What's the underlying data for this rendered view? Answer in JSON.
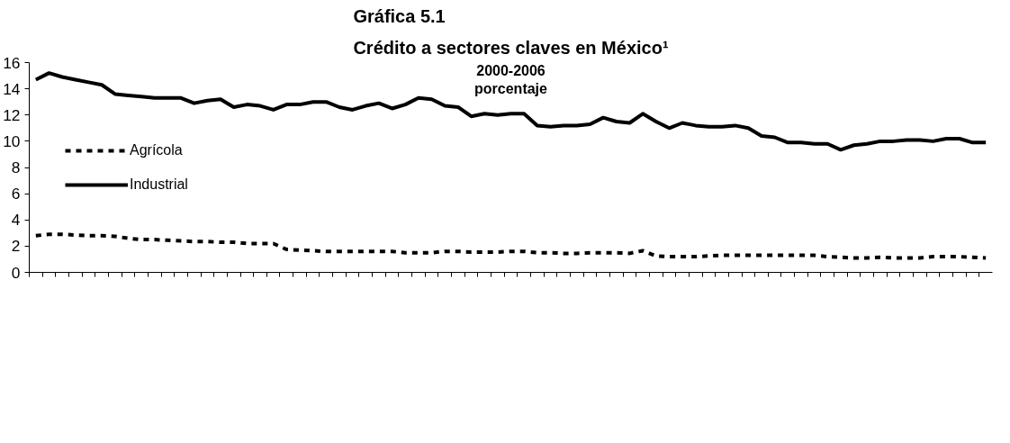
{
  "chart_data": {
    "type": "line",
    "title": "Gráfica 5.1\nCrédito a sectores claves en México¹",
    "subtitle": "2000-2006\nporcentaje",
    "categories": [
      null,
      null,
      null,
      null,
      null,
      null,
      null,
      null,
      null,
      null,
      null,
      null,
      null,
      null,
      null,
      null,
      null,
      null,
      null,
      null,
      null,
      null,
      null,
      null,
      null,
      null,
      null,
      null,
      null,
      null,
      null,
      null,
      null,
      null,
      null,
      null,
      null,
      null,
      null,
      null,
      null,
      null,
      null,
      null,
      null,
      null,
      null,
      null,
      null,
      null,
      null,
      null,
      null,
      null,
      null,
      null,
      null,
      null,
      null,
      null,
      null,
      null,
      null,
      null,
      null,
      null,
      null,
      null,
      null,
      null,
      null,
      null,
      null
    ],
    "series": [
      {
        "name": "Agrícola",
        "color": "#000000",
        "line_style": "dashed",
        "values": [
          2.8,
          2.9,
          2.9,
          2.85,
          2.8,
          2.8,
          2.75,
          2.6,
          2.5,
          2.5,
          2.45,
          2.4,
          2.35,
          2.35,
          2.3,
          2.3,
          2.2,
          2.2,
          2.2,
          1.75,
          1.7,
          1.65,
          1.6,
          1.6,
          1.6,
          1.6,
          1.6,
          1.6,
          1.5,
          1.5,
          1.5,
          1.6,
          1.6,
          1.55,
          1.55,
          1.55,
          1.6,
          1.6,
          1.5,
          1.5,
          1.45,
          1.45,
          1.5,
          1.5,
          1.5,
          1.45,
          1.65,
          1.25,
          1.2,
          1.2,
          1.2,
          1.25,
          1.3,
          1.3,
          1.3,
          1.3,
          1.3,
          1.3,
          1.3,
          1.3,
          1.2,
          1.15,
          1.1,
          1.1,
          1.15,
          1.1,
          1.1,
          1.1,
          1.2,
          1.2,
          1.2,
          1.15,
          1.1
        ]
      },
      {
        "name": "Industrial",
        "color": "#000000",
        "line_style": "solid",
        "values": [
          14.7,
          15.2,
          14.9,
          14.7,
          14.5,
          14.3,
          13.6,
          13.5,
          13.4,
          13.3,
          13.3,
          13.3,
          12.9,
          13.1,
          13.2,
          12.6,
          12.8,
          12.7,
          12.4,
          12.8,
          12.8,
          13.0,
          13.0,
          12.6,
          12.4,
          12.7,
          12.9,
          12.5,
          12.8,
          13.3,
          13.2,
          12.7,
          12.6,
          11.9,
          12.1,
          12.0,
          12.1,
          12.1,
          11.2,
          11.1,
          11.2,
          11.2,
          11.3,
          11.8,
          11.5,
          11.4,
          12.1,
          11.5,
          11.0,
          11.4,
          11.2,
          11.1,
          11.1,
          11.2,
          11.0,
          10.4,
          10.3,
          9.9,
          9.9,
          9.8,
          9.8,
          9.35,
          9.7,
          9.8,
          10.0,
          10.0,
          10.1,
          10.1,
          10.0,
          10.2,
          10.2,
          9.9,
          9.9
        ]
      }
    ],
    "ylim": [
      0,
      16
    ],
    "yticks": [
      0,
      2,
      4,
      6,
      8,
      10,
      12,
      14,
      16
    ],
    "grid": false,
    "legend": "left",
    "tick_labels": "y",
    "marker": "none"
  }
}
